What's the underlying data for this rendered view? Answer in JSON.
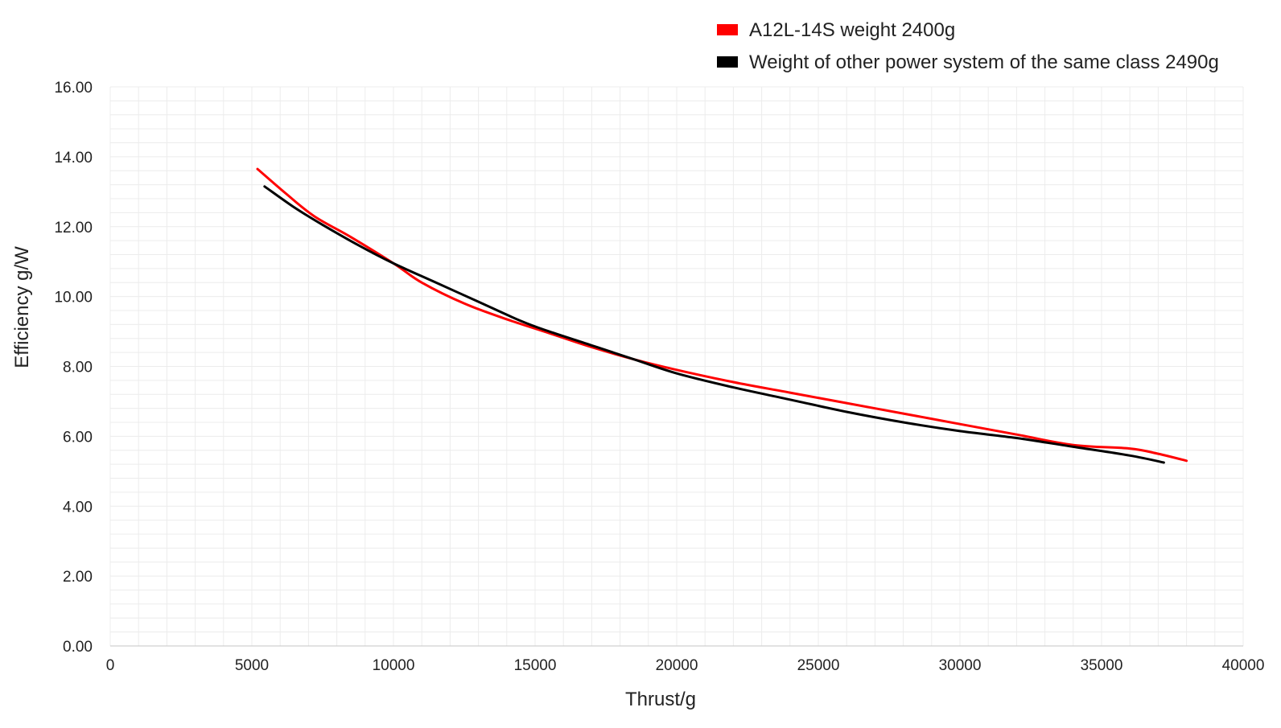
{
  "chart_data": {
    "type": "line",
    "title": "",
    "xlabel": "Thrust/g",
    "ylabel": "Efficiency g/W",
    "xlim": [
      0,
      40000
    ],
    "ylim": [
      0,
      16
    ],
    "x_ticks": [
      "0",
      "5000",
      "10000",
      "15000",
      "20000",
      "25000",
      "30000",
      "35000",
      "40000"
    ],
    "y_ticks": [
      "0.00",
      "2.00",
      "4.00",
      "6.00",
      "8.00",
      "10.00",
      "12.00",
      "14.00",
      "16.00"
    ],
    "grid": true,
    "legend_position": "top-right",
    "series": [
      {
        "name": "A12L-14S weight 2400g",
        "color": "#ff0000",
        "x": [
          5200,
          6200,
          7200,
          8500,
          10000,
          11000,
          12500,
          14000,
          15500,
          17000,
          18500,
          20000,
          22000,
          24000,
          26000,
          28000,
          30000,
          32000,
          34000,
          36000,
          37000,
          38000
        ],
        "y": [
          13.65,
          12.95,
          12.3,
          11.7,
          10.95,
          10.4,
          9.8,
          9.35,
          8.95,
          8.55,
          8.2,
          7.9,
          7.55,
          7.25,
          6.95,
          6.65,
          6.35,
          6.05,
          5.75,
          5.65,
          5.5,
          5.3
        ]
      },
      {
        "name": "Weight of other power system of the same class 2490g",
        "color": "#000000",
        "x": [
          5450,
          6500,
          7500,
          8800,
          10000,
          11500,
          13000,
          14500,
          15500,
          17000,
          18500,
          20000,
          22000,
          24000,
          26000,
          28000,
          30000,
          32000,
          34000,
          36000,
          37200
        ],
        "y": [
          13.15,
          12.55,
          12.05,
          11.45,
          10.95,
          10.4,
          9.85,
          9.3,
          9.0,
          8.6,
          8.2,
          7.8,
          7.4,
          7.05,
          6.7,
          6.4,
          6.15,
          5.95,
          5.7,
          5.45,
          5.25
        ]
      }
    ]
  }
}
